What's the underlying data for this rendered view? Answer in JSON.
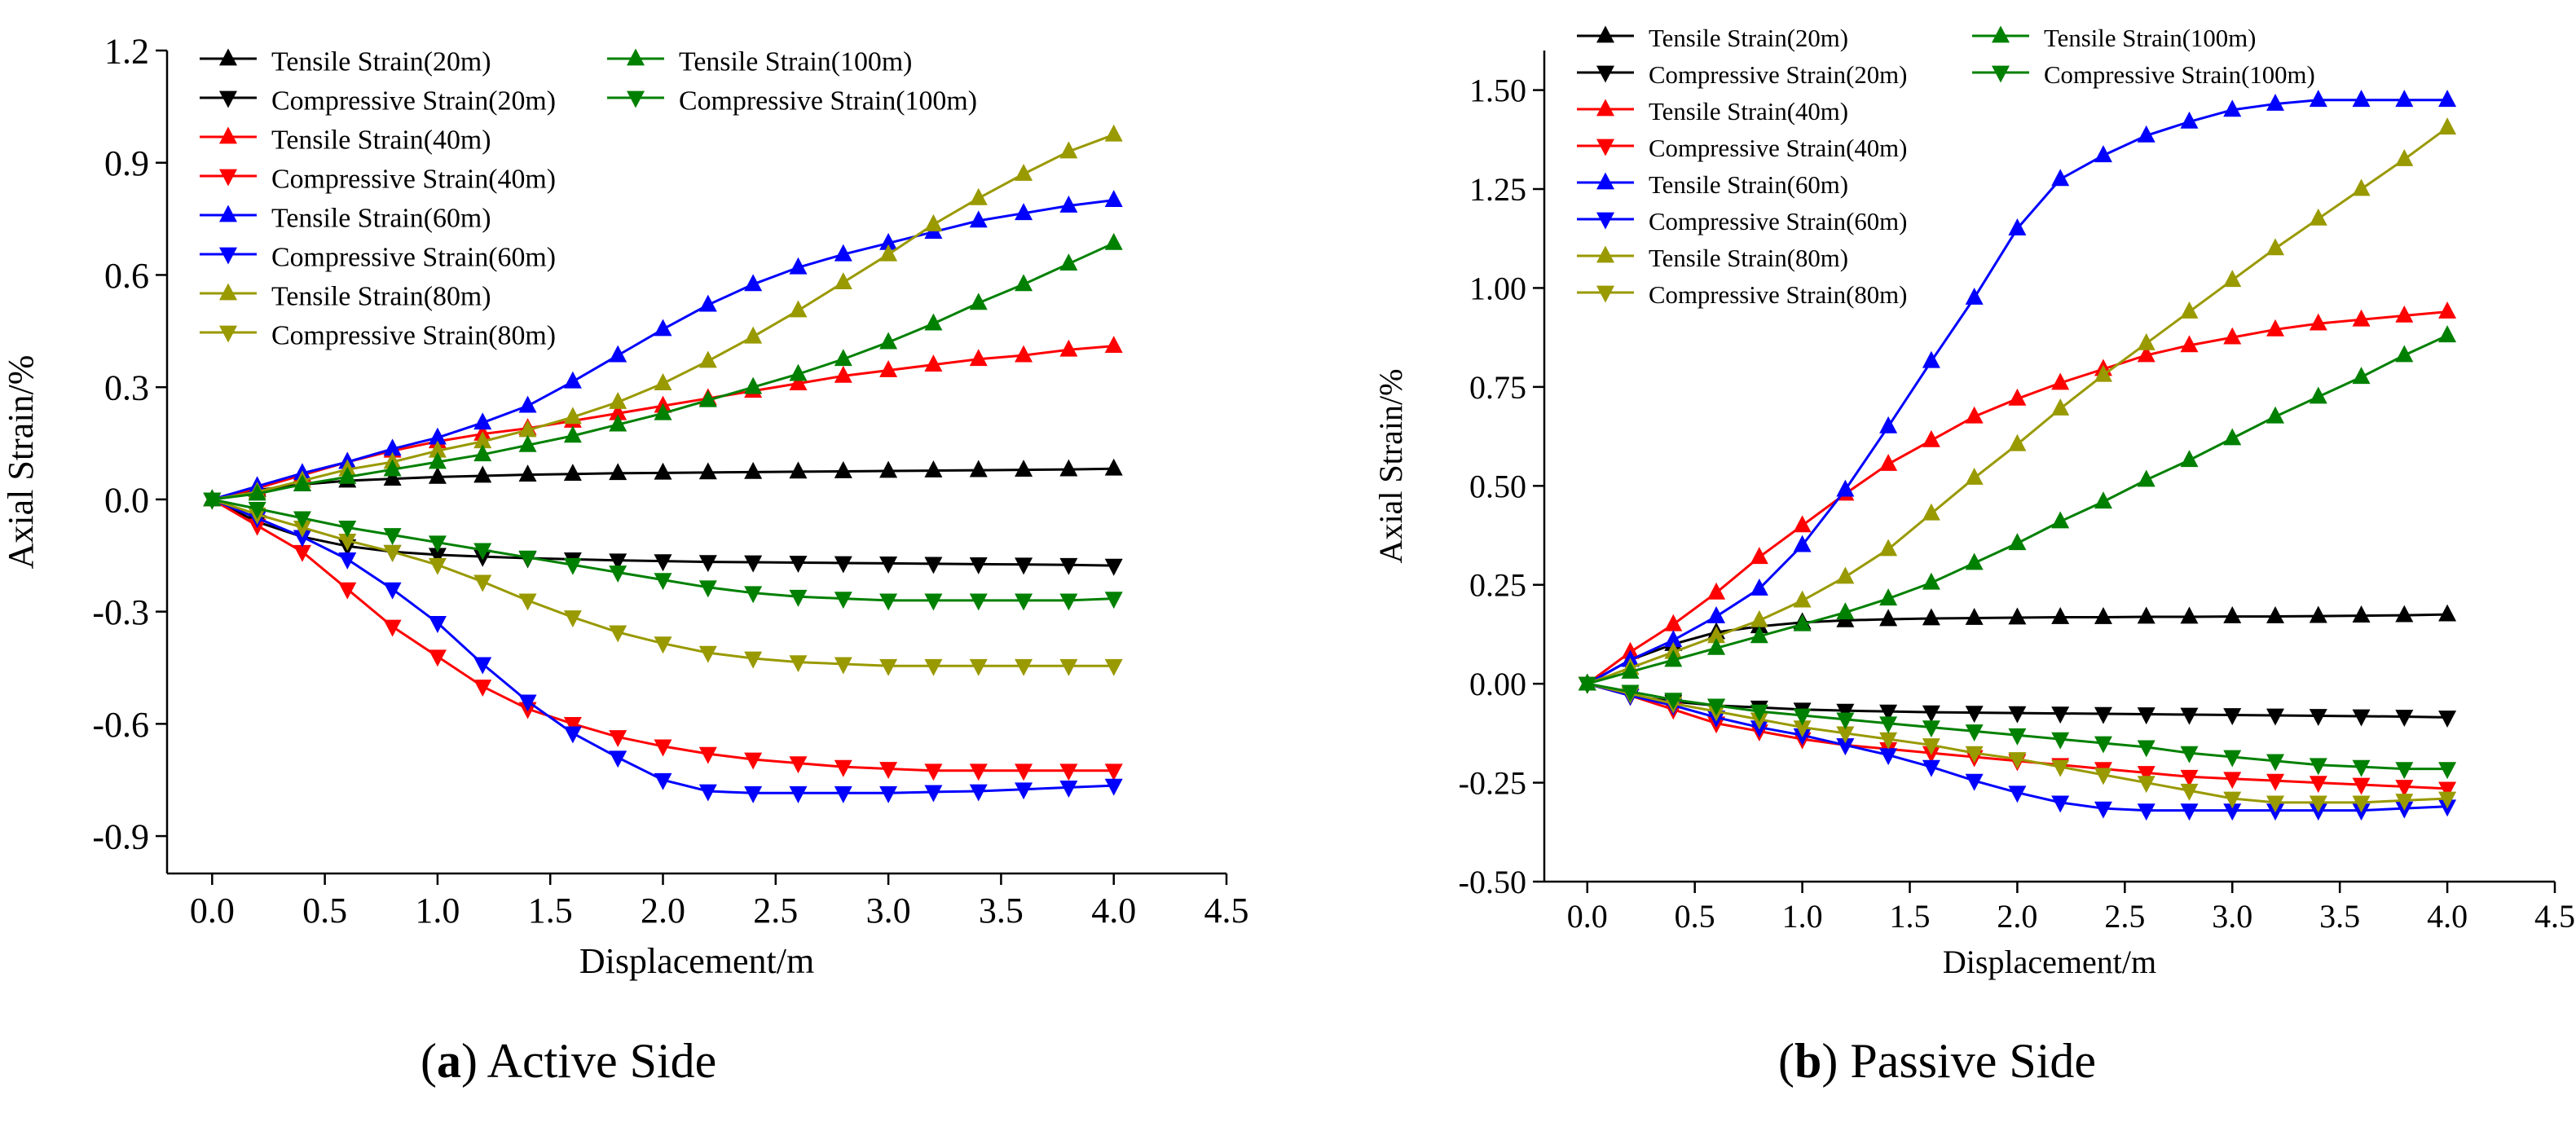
{
  "captions": [
    {
      "letter": "a",
      "text": "Active Side"
    },
    {
      "letter": "b",
      "text": "Passive Side"
    }
  ],
  "chart_data": [
    {
      "type": "line",
      "xlabel": "Displacement/m",
      "ylabel": "Axial Strain/%",
      "xlim": [
        -0.2,
        4.5
      ],
      "ylim": [
        -1.0,
        1.2
      ],
      "xticks": [
        "0.0",
        "0.5",
        "1.0",
        "1.5",
        "2.0",
        "2.5",
        "3.0",
        "3.5",
        "4.0",
        "4.5"
      ],
      "yticks": [
        "-0.9",
        "-0.6",
        "-0.3",
        "0.0",
        "0.3",
        "0.6",
        "0.9",
        "1.2"
      ],
      "legend_placement": "top-left",
      "legend_columns": 2,
      "x": [
        0,
        0.2,
        0.4,
        0.6,
        0.8,
        1.0,
        1.2,
        1.4,
        1.6,
        1.8,
        2.0,
        2.2,
        2.4,
        2.6,
        2.8,
        3.0,
        3.2,
        3.4,
        3.6,
        3.8,
        4.0
      ],
      "series": [
        {
          "name": "Tensile Strain(20m)",
          "color": "#000000",
          "marker": "up",
          "values": [
            0,
            0.025,
            0.04,
            0.05,
            0.055,
            0.06,
            0.063,
            0.066,
            0.068,
            0.07,
            0.071,
            0.072,
            0.073,
            0.074,
            0.075,
            0.076,
            0.077,
            0.078,
            0.079,
            0.08,
            0.082
          ]
        },
        {
          "name": "Compressive Strain(20m)",
          "color": "#000000",
          "marker": "down",
          "values": [
            0,
            -0.06,
            -0.1,
            -0.125,
            -0.14,
            -0.148,
            -0.153,
            -0.157,
            -0.16,
            -0.163,
            -0.165,
            -0.167,
            -0.168,
            -0.169,
            -0.17,
            -0.171,
            -0.172,
            -0.173,
            -0.174,
            -0.175,
            -0.177
          ]
        },
        {
          "name": "Tensile Strain(40m)",
          "color": "#ff0000",
          "marker": "up",
          "values": [
            0,
            0.03,
            0.065,
            0.1,
            0.13,
            0.155,
            0.175,
            0.19,
            0.21,
            0.23,
            0.25,
            0.27,
            0.29,
            0.31,
            0.33,
            0.345,
            0.36,
            0.375,
            0.385,
            0.4,
            0.41
          ]
        },
        {
          "name": "Compressive Strain(40m)",
          "color": "#ff0000",
          "marker": "down",
          "values": [
            0,
            -0.07,
            -0.14,
            -0.24,
            -0.34,
            -0.42,
            -0.5,
            -0.56,
            -0.6,
            -0.635,
            -0.66,
            -0.68,
            -0.695,
            -0.705,
            -0.715,
            -0.72,
            -0.725,
            -0.725,
            -0.725,
            -0.725,
            -0.725
          ]
        },
        {
          "name": "Tensile Strain(60m)",
          "color": "#0000ff",
          "marker": "up",
          "values": [
            0,
            0.035,
            0.07,
            0.1,
            0.135,
            0.165,
            0.205,
            0.25,
            0.315,
            0.385,
            0.455,
            0.52,
            0.575,
            0.62,
            0.655,
            0.685,
            0.715,
            0.745,
            0.765,
            0.785,
            0.8
          ]
        },
        {
          "name": "Compressive Strain(60m)",
          "color": "#0000ff",
          "marker": "down",
          "values": [
            0,
            -0.05,
            -0.1,
            -0.16,
            -0.24,
            -0.33,
            -0.44,
            -0.54,
            -0.625,
            -0.69,
            -0.75,
            -0.78,
            -0.785,
            -0.785,
            -0.785,
            -0.785,
            -0.782,
            -0.78,
            -0.775,
            -0.77,
            -0.765
          ]
        },
        {
          "name": "Tensile Strain(80m)",
          "color": "#999900",
          "marker": "up",
          "values": [
            0,
            0.02,
            0.05,
            0.08,
            0.1,
            0.13,
            0.155,
            0.185,
            0.22,
            0.26,
            0.31,
            0.37,
            0.435,
            0.505,
            0.58,
            0.655,
            0.735,
            0.805,
            0.87,
            0.93,
            0.975
          ]
        },
        {
          "name": "Compressive Strain(80m)",
          "color": "#999900",
          "marker": "down",
          "values": [
            0,
            -0.04,
            -0.075,
            -0.11,
            -0.14,
            -0.175,
            -0.22,
            -0.27,
            -0.315,
            -0.355,
            -0.385,
            -0.41,
            -0.425,
            -0.435,
            -0.44,
            -0.445,
            -0.445,
            -0.445,
            -0.445,
            -0.445,
            -0.445
          ]
        },
        {
          "name": "Tensile Strain(100m)",
          "color": "#008000",
          "marker": "up",
          "values": [
            0,
            0.015,
            0.04,
            0.06,
            0.08,
            0.1,
            0.12,
            0.145,
            0.17,
            0.2,
            0.23,
            0.265,
            0.3,
            0.335,
            0.375,
            0.42,
            0.47,
            0.525,
            0.575,
            0.63,
            0.685
          ]
        },
        {
          "name": "Compressive Strain(100m)",
          "color": "#008000",
          "marker": "down",
          "values": [
            0,
            -0.025,
            -0.05,
            -0.075,
            -0.095,
            -0.115,
            -0.135,
            -0.155,
            -0.175,
            -0.195,
            -0.215,
            -0.235,
            -0.25,
            -0.26,
            -0.265,
            -0.27,
            -0.27,
            -0.27,
            -0.27,
            -0.27,
            -0.265
          ]
        }
      ]
    },
    {
      "type": "line",
      "xlabel": "Displacement/m",
      "ylabel": "Axial Strain/%",
      "xlim": [
        -0.2,
        4.5
      ],
      "ylim": [
        -0.5,
        1.6
      ],
      "xticks": [
        "0.0",
        "0.5",
        "1.0",
        "1.5",
        "2.0",
        "2.5",
        "3.0",
        "3.5",
        "4.0",
        "4.5"
      ],
      "yticks": [
        "-0.50",
        "-0.25",
        "0.00",
        "0.25",
        "0.50",
        "0.75",
        "1.00",
        "1.25",
        "1.50"
      ],
      "legend_placement": "top-left",
      "legend_columns": 2,
      "x": [
        0,
        0.2,
        0.4,
        0.6,
        0.8,
        1.0,
        1.2,
        1.4,
        1.6,
        1.8,
        2.0,
        2.2,
        2.4,
        2.6,
        2.8,
        3.0,
        3.2,
        3.4,
        3.6,
        3.8,
        4.0
      ],
      "series": [
        {
          "name": "Tensile Strain(20m)",
          "color": "#000000",
          "marker": "up",
          "values": [
            0,
            0.06,
            0.1,
            0.13,
            0.145,
            0.155,
            0.16,
            0.163,
            0.165,
            0.166,
            0.167,
            0.168,
            0.168,
            0.169,
            0.169,
            0.17,
            0.17,
            0.171,
            0.172,
            0.173,
            0.175
          ]
        },
        {
          "name": "Compressive Strain(20m)",
          "color": "#000000",
          "marker": "down",
          "values": [
            0,
            -0.03,
            -0.045,
            -0.055,
            -0.06,
            -0.065,
            -0.068,
            -0.07,
            -0.072,
            -0.073,
            -0.074,
            -0.075,
            -0.076,
            -0.077,
            -0.078,
            -0.079,
            -0.08,
            -0.081,
            -0.082,
            -0.083,
            -0.085
          ]
        },
        {
          "name": "Tensile Strain(40m)",
          "color": "#ff0000",
          "marker": "up",
          "values": [
            0,
            0.08,
            0.15,
            0.23,
            0.32,
            0.4,
            0.48,
            0.555,
            0.615,
            0.675,
            0.72,
            0.76,
            0.795,
            0.83,
            0.855,
            0.875,
            0.895,
            0.91,
            0.92,
            0.93,
            0.94
          ]
        },
        {
          "name": "Compressive Strain(40m)",
          "color": "#ff0000",
          "marker": "down",
          "values": [
            0,
            -0.03,
            -0.065,
            -0.1,
            -0.12,
            -0.14,
            -0.155,
            -0.165,
            -0.175,
            -0.185,
            -0.195,
            -0.205,
            -0.215,
            -0.225,
            -0.235,
            -0.24,
            -0.245,
            -0.25,
            -0.255,
            -0.26,
            -0.265
          ]
        },
        {
          "name": "Tensile Strain(60m)",
          "color": "#0000ff",
          "marker": "up",
          "values": [
            0,
            0.06,
            0.11,
            0.17,
            0.24,
            0.35,
            0.49,
            0.65,
            0.815,
            0.975,
            1.15,
            1.275,
            1.335,
            1.385,
            1.42,
            1.45,
            1.465,
            1.475,
            1.475,
            1.475,
            1.475
          ]
        },
        {
          "name": "Compressive Strain(60m)",
          "color": "#0000ff",
          "marker": "down",
          "values": [
            0,
            -0.03,
            -0.055,
            -0.085,
            -0.11,
            -0.13,
            -0.155,
            -0.18,
            -0.21,
            -0.245,
            -0.275,
            -0.3,
            -0.315,
            -0.32,
            -0.32,
            -0.32,
            -0.32,
            -0.32,
            -0.32,
            -0.315,
            -0.31
          ]
        },
        {
          "name": "Tensile Strain(80m)",
          "color": "#999900",
          "marker": "up",
          "values": [
            0,
            0.04,
            0.08,
            0.12,
            0.16,
            0.21,
            0.27,
            0.34,
            0.43,
            0.52,
            0.605,
            0.695,
            0.78,
            0.86,
            0.94,
            1.02,
            1.1,
            1.175,
            1.25,
            1.325,
            1.405
          ]
        },
        {
          "name": "Compressive Strain(80m)",
          "color": "#999900",
          "marker": "down",
          "values": [
            0,
            -0.025,
            -0.05,
            -0.07,
            -0.09,
            -0.11,
            -0.125,
            -0.14,
            -0.155,
            -0.175,
            -0.19,
            -0.21,
            -0.23,
            -0.25,
            -0.27,
            -0.29,
            -0.3,
            -0.3,
            -0.3,
            -0.295,
            -0.29
          ]
        },
        {
          "name": "Tensile Strain(100m)",
          "color": "#008000",
          "marker": "up",
          "values": [
            0,
            0.03,
            0.06,
            0.09,
            0.12,
            0.15,
            0.18,
            0.215,
            0.255,
            0.305,
            0.355,
            0.41,
            0.46,
            0.515,
            0.565,
            0.62,
            0.675,
            0.725,
            0.775,
            0.83,
            0.88
          ]
        },
        {
          "name": "Compressive Strain(100m)",
          "color": "#008000",
          "marker": "down",
          "values": [
            0,
            -0.02,
            -0.04,
            -0.055,
            -0.07,
            -0.08,
            -0.09,
            -0.1,
            -0.11,
            -0.12,
            -0.13,
            -0.14,
            -0.15,
            -0.16,
            -0.175,
            -0.185,
            -0.195,
            -0.205,
            -0.21,
            -0.215,
            -0.215
          ]
        }
      ]
    }
  ]
}
